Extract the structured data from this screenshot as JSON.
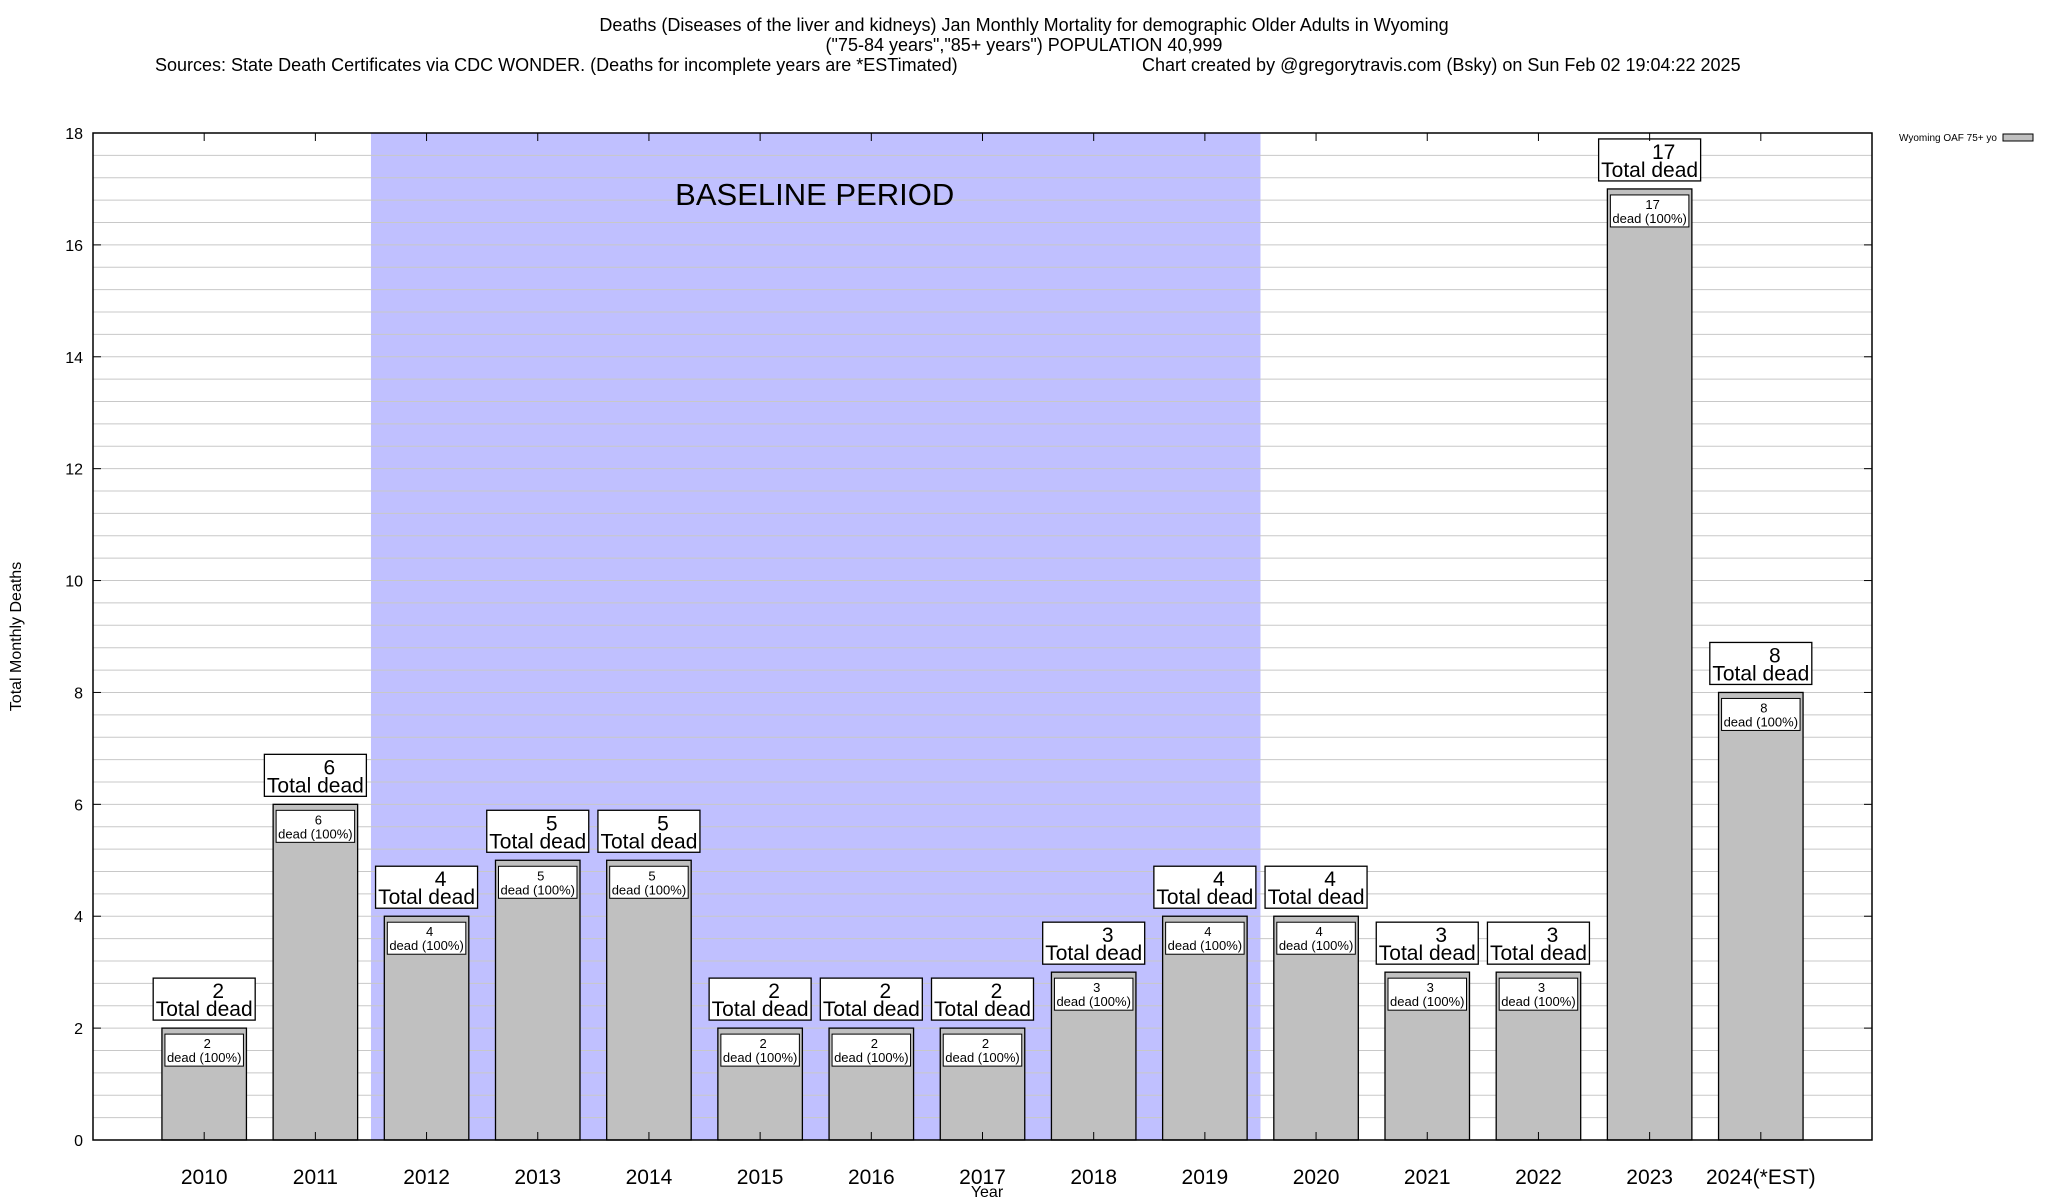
{
  "chart_data": {
    "type": "bar",
    "title": "Deaths (Diseases of the liver and kidneys) Jan Monthly Mortality for demographic Older Adults in Wyoming",
    "subtitle": "(\"75-84 years\",\"85+ years\") POPULATION 40,999",
    "sources": "Sources: State Death Certificates via CDC WONDER. (Deaths for incomplete years are *ESTimated)",
    "credit": "Chart created by @gregorytravis.com (Bsky) on Sun Feb 02 19:04:22 2025",
    "xlabel": "Year",
    "ylabel": "Total Monthly Deaths",
    "ylim": [
      0,
      18
    ],
    "yticks": [
      0,
      2,
      4,
      6,
      8,
      10,
      12,
      14,
      16,
      18
    ],
    "grid": true,
    "legend": {
      "placement": "top-right outside",
      "entries": [
        "Wyoming OAF 75+ yo"
      ]
    },
    "categories": [
      "2010",
      "2011",
      "2012",
      "2013",
      "2014",
      "2015",
      "2016",
      "2017",
      "2018",
      "2019",
      "2020",
      "2021",
      "2022",
      "2023",
      "2024(*EST)"
    ],
    "series": [
      {
        "name": "Wyoming OAF 75+ yo",
        "values": [
          2,
          6,
          4,
          5,
          5,
          2,
          2,
          2,
          3,
          4,
          4,
          3,
          3,
          17,
          8
        ]
      }
    ],
    "total_label_suffix": "Total dead",
    "inner_label_suffix": "dead (100%)",
    "baseline": {
      "label": "BASELINE PERIOD",
      "from": "2012",
      "to": "2019"
    },
    "colors": {
      "bar": "#c0c0c0",
      "baseline": "#c0c0ff",
      "grid": "#c8c8c8"
    }
  }
}
